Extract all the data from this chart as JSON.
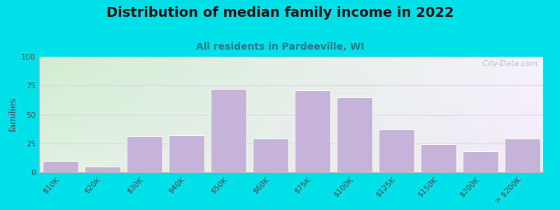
{
  "title": "Distribution of median family income in 2022",
  "subtitle": "All residents in Pardeeville, WI",
  "ylabel": "families",
  "categories": [
    "$10K",
    "$20K",
    "$30K",
    "$40K",
    "$50K",
    "$60K",
    "$75K",
    "$100K",
    "$125K",
    "$150K",
    "$200K",
    "> $200K"
  ],
  "values": [
    10,
    5,
    31,
    32,
    72,
    29,
    71,
    65,
    37,
    24,
    18,
    29
  ],
  "bar_color": "#c5b3d9",
  "bar_edge_color": "#ffffff",
  "ylim": [
    0,
    100
  ],
  "yticks": [
    0,
    25,
    50,
    75,
    100
  ],
  "background_outer": "#00e0e8",
  "bg_grad_top_left": "#cfe8d0",
  "bg_grad_right": "#f0ecf8",
  "grid_color": "#ddd0ea",
  "title_fontsize": 14,
  "subtitle_fontsize": 10,
  "ylabel_fontsize": 9,
  "tick_fontsize": 8,
  "watermark": "  City-Data.com"
}
